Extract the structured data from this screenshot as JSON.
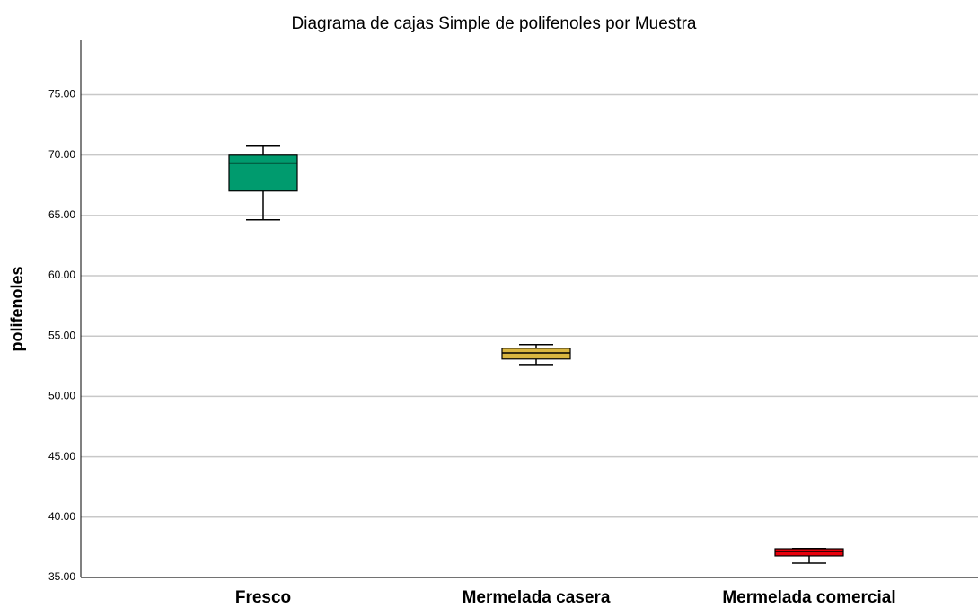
{
  "chart_data": {
    "type": "box",
    "title": "Diagrama de cajas Simple de polifenoles por Muestra",
    "y_label": "polifenoles",
    "categories": [
      "Fresco",
      "Mermelada casera",
      "Mermelada comercial"
    ],
    "boxes": [
      {
        "min": 64.64,
        "q1": 67.02,
        "median": 69.33,
        "q3": 69.99,
        "max": 70.74
      },
      {
        "min": 52.65,
        "q1": 53.1,
        "median": 53.6,
        "q3": 53.99,
        "max": 54.29
      },
      {
        "min": 36.19,
        "q1": 36.79,
        "median": 37.16,
        "q3": 37.38,
        "max": 37.4
      }
    ],
    "colors": [
      "#009b6e",
      "#d8b540",
      "#e8000b"
    ],
    "ylim": [
      35,
      79.5
    ],
    "yticks": [
      {
        "value": 35,
        "label": "35.00"
      },
      {
        "value": 40,
        "label": "40.00"
      },
      {
        "value": 45,
        "label": "45.00"
      },
      {
        "value": 50,
        "label": "50.00"
      },
      {
        "value": 55,
        "label": "55.00"
      },
      {
        "value": 60,
        "label": "60.00"
      },
      {
        "value": 65,
        "label": "65.00"
      },
      {
        "value": 70,
        "label": "70.00"
      },
      {
        "value": 75,
        "label": "75.00"
      }
    ],
    "grid": true
  }
}
